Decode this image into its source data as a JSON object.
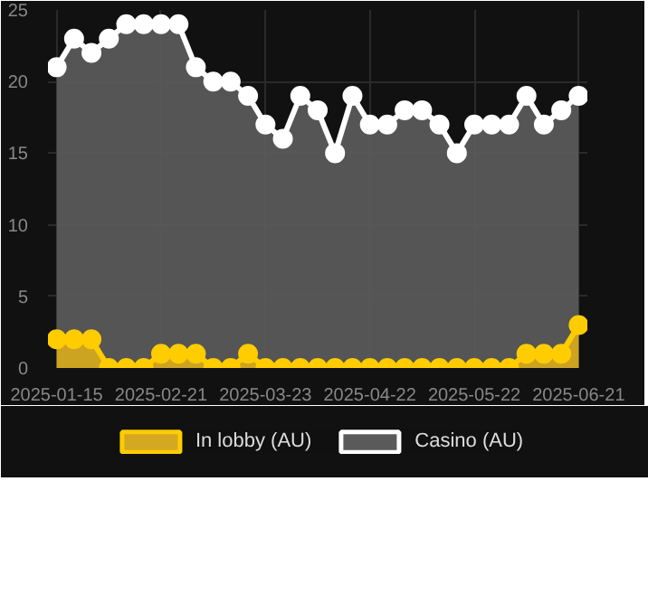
{
  "chart_data": {
    "type": "area",
    "categories": [
      "2025-01-15",
      null,
      null,
      null,
      null,
      null,
      "2025-02-21",
      null,
      null,
      null,
      null,
      null,
      "2025-03-23",
      null,
      null,
      null,
      null,
      null,
      "2025-04-22",
      null,
      null,
      null,
      null,
      null,
      "2025-05-22",
      null,
      null,
      null,
      null,
      null,
      "2025-06-21"
    ],
    "series": [
      {
        "name": "In lobby (AU)",
        "color": "#ffcc00",
        "values": [
          2,
          2,
          2,
          0,
          0,
          0,
          1,
          1,
          1,
          0,
          0,
          1,
          0,
          0,
          0,
          0,
          0,
          0,
          0,
          0,
          0,
          0,
          0,
          0,
          0,
          0,
          0,
          1,
          1,
          1,
          3
        ]
      },
      {
        "name": "Casino (AU)",
        "color": "#ffffff",
        "values": [
          21,
          23,
          22,
          23,
          24,
          24,
          24,
          24,
          21,
          20,
          20,
          19,
          17,
          16,
          19,
          18,
          15,
          19,
          17,
          17,
          18,
          18,
          17,
          15,
          17,
          17,
          17,
          19,
          17,
          18,
          19
        ]
      }
    ],
    "ylim": [
      0,
      25
    ],
    "yticks": [
      0,
      5,
      10,
      15,
      20,
      25
    ],
    "grid": true,
    "legend": "bottom",
    "marker": "circle"
  }
}
